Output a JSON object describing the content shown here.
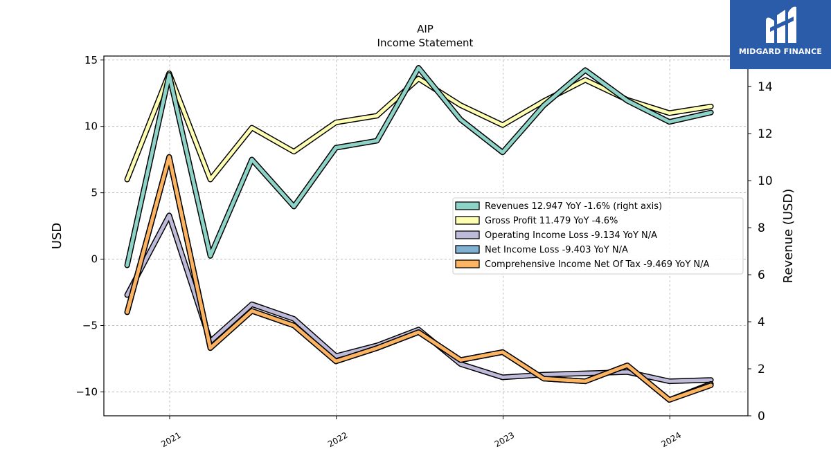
{
  "chart_data": {
    "type": "line",
    "title": "AIP",
    "subtitle": "Income Statement",
    "ylabel_left": "USD",
    "ylabel_right": "Revenue (USD)",
    "ylim_left": [
      -11.8,
      15.3
    ],
    "ylim_right": [
      0,
      15.3
    ],
    "yticks_left": [
      -10,
      -5,
      0,
      5,
      10,
      15
    ],
    "yticks_right": [
      0,
      2,
      4,
      6,
      8,
      10,
      12,
      14
    ],
    "ytick_labels_left": [
      "−10",
      "−5",
      "0",
      "5",
      "10",
      "15"
    ],
    "ytick_labels_right": [
      "0",
      "2",
      "4",
      "6",
      "8",
      "10",
      "12",
      "14"
    ],
    "xlim": [
      "2020-08-10",
      "2024-06-20"
    ],
    "xticks": [
      "2021-01-01",
      "2022-01-01",
      "2023-01-01",
      "2024-01-01"
    ],
    "xtick_labels": [
      "2021",
      "2022",
      "2023",
      "2024"
    ],
    "grid": true,
    "legend_position": "center-right",
    "x": [
      "2020-09-30",
      "2020-12-31",
      "2021-03-31",
      "2021-06-30",
      "2021-09-30",
      "2021-12-31",
      "2022-03-31",
      "2022-06-30",
      "2022-09-30",
      "2022-12-31",
      "2023-03-31",
      "2023-06-30",
      "2023-09-30",
      "2023-12-31",
      "2024-03-31"
    ],
    "series": [
      {
        "name": "Revenues  12.947 YoY -1.6% (right axis)",
        "axis": "right",
        "color": "#8dd3c7",
        "values": [
          6.4,
          14.5,
          6.8,
          10.9,
          8.9,
          11.4,
          11.7,
          14.8,
          12.6,
          11.2,
          13.2,
          14.7,
          13.4,
          12.5,
          12.9
        ]
      },
      {
        "name": "Gross Profit  11.479 YoY -4.6%",
        "axis": "left",
        "color": "#ffffb3",
        "values": [
          6.0,
          14.0,
          6.0,
          9.9,
          8.1,
          10.3,
          10.8,
          13.6,
          11.6,
          10.1,
          11.9,
          13.5,
          12.0,
          11.0,
          11.5
        ]
      },
      {
        "name": "Operating Income Loss  -9.134 YoY N/A",
        "axis": "left",
        "color": "#bebada",
        "values": [
          -2.7,
          3.3,
          -6.2,
          -3.4,
          -4.5,
          -7.3,
          -6.5,
          -5.3,
          -7.9,
          -8.9,
          -8.7,
          -8.6,
          -8.5,
          -9.2,
          -9.1
        ]
      },
      {
        "name": "Net Income Loss  -9.403 YoY N/A",
        "axis": "left",
        "color": "#80b1d3",
        "values": [
          -4.0,
          7.7,
          -6.7,
          -3.9,
          -5.0,
          -7.7,
          -6.7,
          -5.5,
          -7.6,
          -7.0,
          -9.0,
          -9.2,
          -8.0,
          -10.6,
          -9.4
        ]
      },
      {
        "name": "Comprehensive Income Net Of Tax  -9.469 YoY N/A",
        "axis": "left",
        "color": "#fdb462",
        "values": [
          -4.0,
          7.7,
          -6.7,
          -3.9,
          -5.0,
          -7.7,
          -6.7,
          -5.5,
          -7.6,
          -7.0,
          -9.0,
          -9.2,
          -8.0,
          -10.6,
          -9.5
        ]
      }
    ]
  },
  "logo": {
    "text": "MIDGARD FINANCE"
  }
}
